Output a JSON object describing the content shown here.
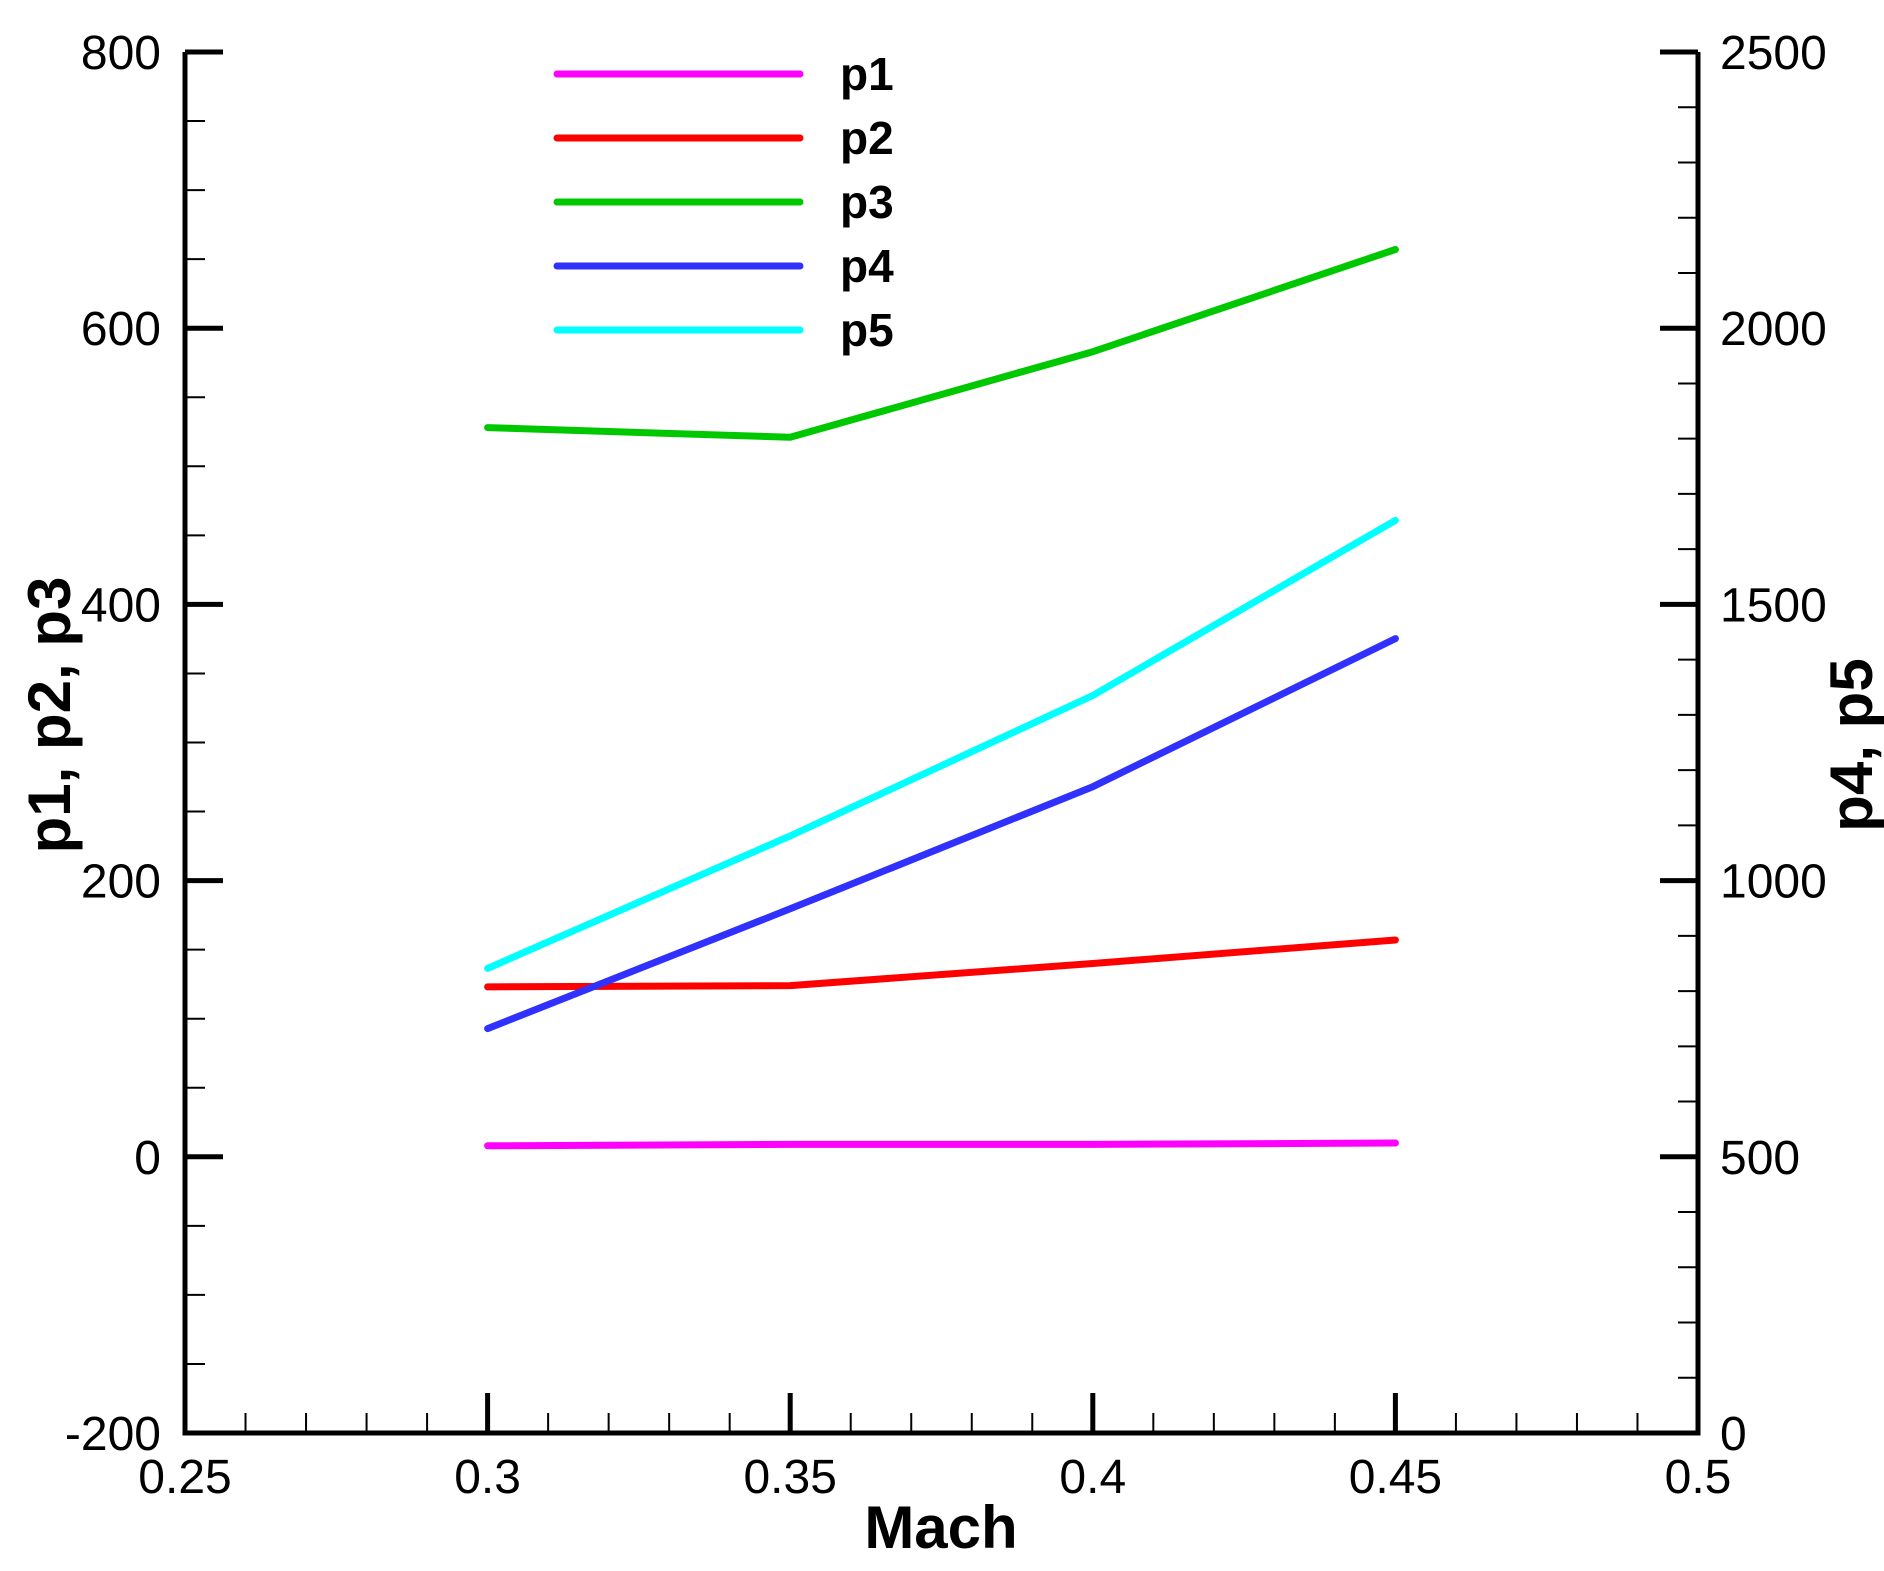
{
  "chart_data": {
    "type": "line",
    "xlabel": "Mach",
    "ylabel_left": "p1, p2, p3",
    "ylabel_right": "p4, p5",
    "xlim": [
      0.25,
      0.5
    ],
    "ylim_left": [
      -200,
      800
    ],
    "ylim_right": [
      0,
      2500
    ],
    "x_ticks": [
      "0.25",
      "0.3",
      "0.35",
      "0.4",
      "0.45",
      "0.5"
    ],
    "y_left_ticks": [
      "-200",
      "0",
      "200",
      "400",
      "600",
      "800"
    ],
    "y_right_ticks": [
      "0",
      "500",
      "1000",
      "1500",
      "2000",
      "2500"
    ],
    "grid": false,
    "legend_position": "top-left",
    "x": [
      0.3,
      0.35,
      0.4,
      0.45
    ],
    "series": [
      {
        "name": "p1",
        "axis": "left",
        "color": "#ff00ff",
        "values": [
          8,
          9,
          9,
          10
        ]
      },
      {
        "name": "p2",
        "axis": "left",
        "color": "#ff0000",
        "values": [
          123,
          124,
          140,
          157
        ]
      },
      {
        "name": "p3",
        "axis": "left",
        "color": "#00c800",
        "values": [
          528,
          521,
          583,
          657
        ]
      },
      {
        "name": "p4",
        "axis": "right",
        "color": "#3030ff",
        "values": [
          732,
          949,
          1170,
          1438
        ]
      },
      {
        "name": "p5",
        "axis": "right",
        "color": "#00ffff",
        "values": [
          841,
          1081,
          1335,
          1652
        ]
      }
    ]
  }
}
